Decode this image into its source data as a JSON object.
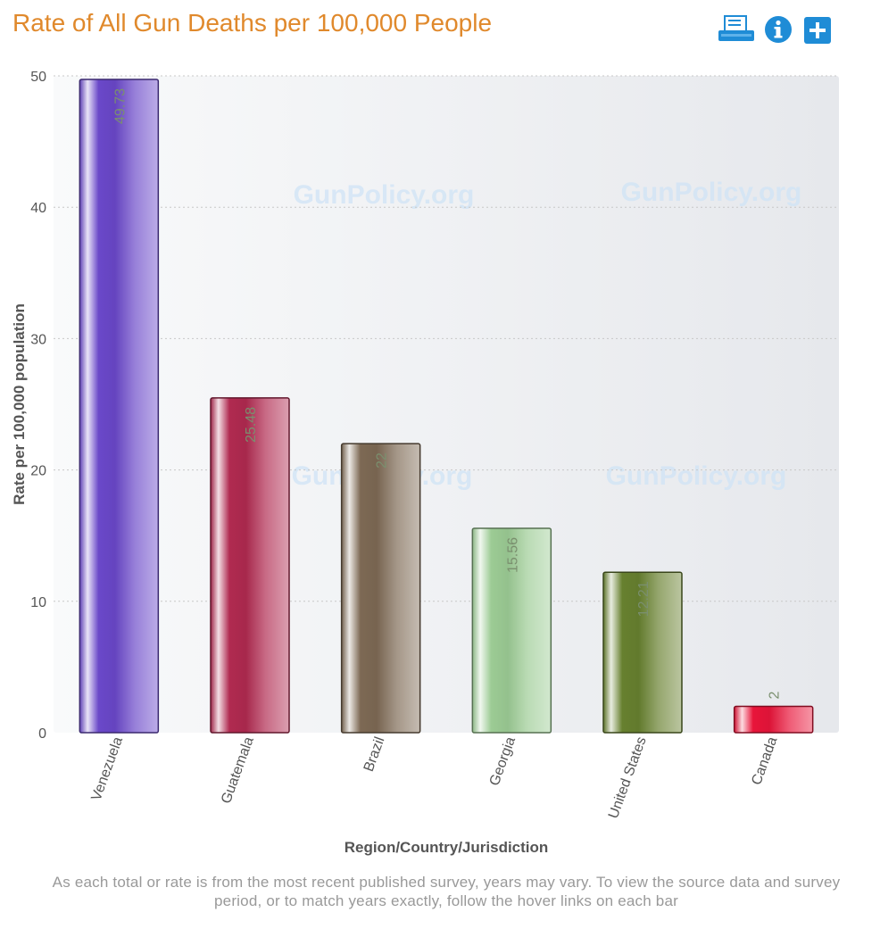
{
  "header": {
    "title": "Rate of All Gun Deaths per 100,000 People",
    "tools": [
      {
        "name": "print-icon",
        "label": "Print"
      },
      {
        "name": "info-icon",
        "label": "Info"
      },
      {
        "name": "add-icon",
        "label": "More"
      }
    ]
  },
  "watermark": "GunPolicy.org",
  "colors": {
    "title": "#e0892c",
    "toolbar": "#1f8cd6",
    "bars": [
      "#6a48c9",
      "#b02a50",
      "#7d6954",
      "#9ccb94",
      "#67802f",
      "#e8153a"
    ]
  },
  "chart_data": {
    "type": "bar",
    "title": "Rate of All Gun Deaths per 100,000 People",
    "xlabel": "Region/Country/Jurisdiction",
    "ylabel": "Rate per 100,000 population",
    "categories": [
      "Venezuela",
      "Guatemala",
      "Brazil",
      "Georgia",
      "United States",
      "Canada"
    ],
    "values": [
      49.73,
      25.48,
      22,
      15.56,
      12.21,
      2
    ],
    "data_labels": [
      "49.73",
      "25.48",
      "22",
      "15.56",
      "12.21",
      "2"
    ],
    "ylim": [
      0,
      50
    ],
    "yticks": [
      0,
      10,
      20,
      30,
      40,
      50
    ],
    "grid": true,
    "legend": "none"
  },
  "footnote": "As each total or rate is from the most recent published survey, years may vary. To view the source data and survey period, or to match years exactly, follow the hover links on each bar"
}
